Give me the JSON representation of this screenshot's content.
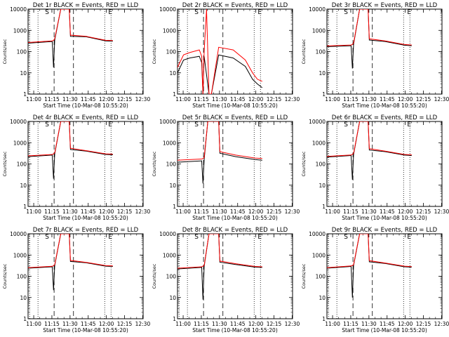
{
  "chart_data": [
    {
      "type": "line",
      "title": "Det 1r BLACK = Events, RED = LLD",
      "xlabel": "Start Time (10-Mar-08 10:55:20)",
      "ylabel": "Counts/sec",
      "x_tick_labels": [
        "11:00",
        "11:15",
        "11:30",
        "11:45",
        "12:00",
        "12:15",
        "12:30"
      ],
      "y_tick_labels": [
        "1",
        "10",
        "100",
        "1000",
        "10000"
      ],
      "y_scale": "log",
      "ylim": [
        1,
        10000
      ],
      "marker_labels": [
        "S",
        "E"
      ],
      "series": [
        {
          "color": "#000000",
          "points": [
            [
              0,
              250
            ],
            [
              20,
              300
            ],
            [
              21,
              18
            ],
            [
              22,
              350
            ],
            [
              27,
              10000
            ],
            [
              34,
              10000
            ],
            [
              35,
              520
            ],
            [
              48,
              500
            ],
            [
              64,
              320
            ],
            [
              70,
              310
            ]
          ]
        },
        {
          "color": "#ff0000",
          "points": [
            [
              0,
              270
            ],
            [
              20,
              320
            ],
            [
              21,
              340
            ],
            [
              22,
              400
            ],
            [
              27,
              10000
            ],
            [
              34,
              10000
            ],
            [
              35,
              600
            ],
            [
              48,
              520
            ],
            [
              64,
              340
            ],
            [
              70,
              330
            ]
          ]
        }
      ]
    },
    {
      "type": "line",
      "title": "Det 2r BLACK = Events, RED = LLD",
      "xlabel": "Start Time (10-Mar-08 10:55:20)",
      "ylabel": "Counts/sec",
      "x_tick_labels": [
        "11:00",
        "11:15",
        "11:30",
        "11:45",
        "12:00",
        "12:15",
        "12:30"
      ],
      "y_tick_labels": [
        "1",
        "10",
        "100",
        "1000",
        "10000"
      ],
      "y_scale": "log",
      "ylim": [
        1,
        10000
      ],
      "marker_labels": [
        "S",
        "E"
      ],
      "series": [
        {
          "color": "#000000",
          "points": [
            [
              0,
              10
            ],
            [
              5,
              40
            ],
            [
              10,
              50
            ],
            [
              18,
              60
            ],
            [
              20,
              30
            ],
            [
              21,
              1
            ],
            [
              22,
              60
            ],
            [
              26,
              1
            ],
            [
              28,
              1
            ],
            [
              34,
              70
            ],
            [
              46,
              50
            ],
            [
              56,
              20
            ],
            [
              62,
              5
            ],
            [
              66,
              3
            ],
            [
              70,
              2
            ]
          ]
        },
        {
          "color": "#ff0000",
          "points": [
            [
              0,
              18
            ],
            [
              5,
              70
            ],
            [
              10,
              90
            ],
            [
              18,
              120
            ],
            [
              20,
              60
            ],
            [
              21,
              1
            ],
            [
              22,
              100
            ],
            [
              24,
              10000
            ],
            [
              26,
              1
            ],
            [
              28,
              1
            ],
            [
              34,
              160
            ],
            [
              46,
              120
            ],
            [
              56,
              40
            ],
            [
              62,
              10
            ],
            [
              66,
              5
            ],
            [
              70,
              4
            ]
          ]
        }
      ]
    },
    {
      "type": "line",
      "title": "Det 3r BLACK = Events, RED = LLD",
      "xlabel": "Start Time (10-Mar-08 10:55:20)",
      "ylabel": "Counts/sec",
      "x_tick_labels": [
        "11:00",
        "11:15",
        "11:30",
        "11:45",
        "12:00",
        "12:15",
        "12:30"
      ],
      "y_tick_labels": [
        "1",
        "10",
        "100",
        "1000",
        "10000"
      ],
      "y_scale": "log",
      "ylim": [
        1,
        10000
      ],
      "marker_labels": [
        "S",
        "E"
      ],
      "series": [
        {
          "color": "#000000",
          "points": [
            [
              0,
              170
            ],
            [
              20,
              190
            ],
            [
              21,
              16
            ],
            [
              22,
              220
            ],
            [
              27,
              10000
            ],
            [
              34,
              10000
            ],
            [
              35,
              350
            ],
            [
              48,
              300
            ],
            [
              64,
              200
            ],
            [
              70,
              190
            ]
          ]
        },
        {
          "color": "#ff0000",
          "points": [
            [
              0,
              185
            ],
            [
              20,
              205
            ],
            [
              21,
              220
            ],
            [
              22,
              250
            ],
            [
              27,
              10000
            ],
            [
              34,
              10000
            ],
            [
              35,
              400
            ],
            [
              48,
              320
            ],
            [
              64,
              215
            ],
            [
              70,
              205
            ]
          ]
        }
      ]
    },
    {
      "type": "line",
      "title": "Det 4r BLACK = Events, RED = LLD",
      "xlabel": "Start Time (10-Mar-08 10:55:20)",
      "ylabel": "Counts/sec",
      "x_tick_labels": [
        "11:00",
        "11:15",
        "11:30",
        "11:45",
        "12:00",
        "12:15",
        "12:30"
      ],
      "y_tick_labels": [
        "1",
        "10",
        "100",
        "1000",
        "10000"
      ],
      "y_scale": "log",
      "ylim": [
        1,
        10000
      ],
      "marker_labels": [
        "S",
        "E"
      ],
      "series": [
        {
          "color": "#000000",
          "points": [
            [
              0,
              220
            ],
            [
              20,
              260
            ],
            [
              21,
              20
            ],
            [
              22,
              300
            ],
            [
              27,
              10000
            ],
            [
              34,
              10000
            ],
            [
              35,
              480
            ],
            [
              48,
              400
            ],
            [
              64,
              280
            ],
            [
              70,
              270
            ]
          ]
        },
        {
          "color": "#ff0000",
          "points": [
            [
              0,
              240
            ],
            [
              20,
              280
            ],
            [
              21,
              300
            ],
            [
              22,
              330
            ],
            [
              27,
              10000
            ],
            [
              34,
              10000
            ],
            [
              35,
              550
            ],
            [
              48,
              420
            ],
            [
              64,
              300
            ],
            [
              70,
              290
            ]
          ]
        }
      ]
    },
    {
      "type": "line",
      "title": "Det 5r BLACK = Events, RED = LLD",
      "xlabel": "Start Time (10-Mar-08 10:55:20)",
      "ylabel": "Counts/sec",
      "x_tick_labels": [
        "11:00",
        "11:15",
        "11:30",
        "11:45",
        "12:00",
        "12:15",
        "12:30"
      ],
      "y_tick_labels": [
        "1",
        "10",
        "100",
        "1000",
        "10000"
      ],
      "y_scale": "log",
      "ylim": [
        1,
        10000
      ],
      "marker_labels": [
        "S",
        "E"
      ],
      "series": [
        {
          "color": "#000000",
          "points": [
            [
              0,
              120
            ],
            [
              20,
              140
            ],
            [
              21,
              12
            ],
            [
              22,
              160
            ],
            [
              25,
              10000
            ],
            [
              34,
              10000
            ],
            [
              35,
              320
            ],
            [
              48,
              220
            ],
            [
              64,
              160
            ],
            [
              70,
              150
            ]
          ]
        },
        {
          "color": "#ff0000",
          "points": [
            [
              0,
              150
            ],
            [
              20,
              170
            ],
            [
              21,
              180
            ],
            [
              22,
              200
            ],
            [
              25,
              10000
            ],
            [
              34,
              10000
            ],
            [
              35,
              380
            ],
            [
              48,
              260
            ],
            [
              64,
              190
            ],
            [
              70,
              180
            ]
          ]
        }
      ]
    },
    {
      "type": "line",
      "title": "Det 6r BLACK = Events, RED = LLD",
      "xlabel": "Start Time (10-Mar-08 10:55:20)",
      "ylabel": "Counts/sec",
      "x_tick_labels": [
        "11:00",
        "11:15",
        "11:30",
        "11:45",
        "12:00",
        "12:15",
        "12:30"
      ],
      "y_tick_labels": [
        "1",
        "10",
        "100",
        "1000",
        "10000"
      ],
      "y_scale": "log",
      "ylim": [
        1,
        10000
      ],
      "marker_labels": [
        "S",
        "E"
      ],
      "series": [
        {
          "color": "#000000",
          "points": [
            [
              0,
              210
            ],
            [
              20,
              250
            ],
            [
              21,
              18
            ],
            [
              22,
              280
            ],
            [
              27,
              10000
            ],
            [
              34,
              10000
            ],
            [
              35,
              450
            ],
            [
              48,
              380
            ],
            [
              64,
              260
            ],
            [
              70,
              250
            ]
          ]
        },
        {
          "color": "#ff0000",
          "points": [
            [
              0,
              225
            ],
            [
              20,
              265
            ],
            [
              21,
              285
            ],
            [
              22,
              310
            ],
            [
              27,
              10000
            ],
            [
              34,
              10000
            ],
            [
              35,
              520
            ],
            [
              48,
              400
            ],
            [
              64,
              280
            ],
            [
              70,
              270
            ]
          ]
        }
      ]
    },
    {
      "type": "line",
      "title": "Det 7r BLACK = Events, RED = LLD",
      "xlabel": "Start Time (10-Mar-08 10:55:20)",
      "ylabel": "Counts/sec",
      "x_tick_labels": [
        "11:00",
        "11:15",
        "11:30",
        "11:45",
        "12:00",
        "12:15",
        "12:30"
      ],
      "y_tick_labels": [
        "1",
        "10",
        "100",
        "1000",
        "10000"
      ],
      "y_scale": "log",
      "ylim": [
        1,
        10000
      ],
      "marker_labels": [
        "S",
        "E"
      ],
      "series": [
        {
          "color": "#000000",
          "points": [
            [
              0,
              240
            ],
            [
              20,
              280
            ],
            [
              21,
              22
            ],
            [
              22,
              320
            ],
            [
              27,
              10000
            ],
            [
              34,
              10000
            ],
            [
              35,
              500
            ],
            [
              48,
              430
            ],
            [
              64,
              300
            ],
            [
              70,
              290
            ]
          ]
        },
        {
          "color": "#ff0000",
          "points": [
            [
              0,
              255
            ],
            [
              20,
              295
            ],
            [
              21,
              315
            ],
            [
              22,
              350
            ],
            [
              27,
              10000
            ],
            [
              34,
              10000
            ],
            [
              35,
              560
            ],
            [
              48,
              450
            ],
            [
              64,
              320
            ],
            [
              70,
              305
            ]
          ]
        }
      ]
    },
    {
      "type": "line",
      "title": "Det 8r BLACK = Events, RED = LLD",
      "xlabel": "Start Time (10-Mar-08 10:55:20)",
      "ylabel": "Counts/sec",
      "x_tick_labels": [
        "11:00",
        "11:15",
        "11:30",
        "11:45",
        "12:00",
        "12:15",
        "12:30"
      ],
      "y_tick_labels": [
        "1",
        "10",
        "100",
        "1000",
        "10000"
      ],
      "y_scale": "log",
      "ylim": [
        1,
        10000
      ],
      "marker_labels": [
        "S",
        "E"
      ],
      "series": [
        {
          "color": "#000000",
          "points": [
            [
              0,
              220
            ],
            [
              20,
              260
            ],
            [
              21,
              8
            ],
            [
              22,
              290
            ],
            [
              26,
              10000
            ],
            [
              34,
              10000
            ],
            [
              35,
              460
            ],
            [
              48,
              360
            ],
            [
              64,
              270
            ],
            [
              70,
              260
            ]
          ]
        },
        {
          "color": "#ff0000",
          "points": [
            [
              0,
              240
            ],
            [
              20,
              280
            ],
            [
              21,
              300
            ],
            [
              22,
              320
            ],
            [
              26,
              10000
            ],
            [
              34,
              10000
            ],
            [
              35,
              520
            ],
            [
              48,
              390
            ],
            [
              64,
              290
            ],
            [
              70,
              280
            ]
          ]
        }
      ]
    },
    {
      "type": "line",
      "title": "Det 9r BLACK = Events, RED = LLD",
      "xlabel": "Start Time (10-Mar-08 10:55:20)",
      "ylabel": "Counts/sec",
      "x_tick_labels": [
        "11:00",
        "11:15",
        "11:30",
        "11:45",
        "12:00",
        "12:15",
        "12:30"
      ],
      "y_tick_labels": [
        "1",
        "10",
        "100",
        "1000",
        "10000"
      ],
      "y_scale": "log",
      "ylim": [
        1,
        10000
      ],
      "marker_labels": [
        "S",
        "E"
      ],
      "series": [
        {
          "color": "#000000",
          "points": [
            [
              0,
              240
            ],
            [
              20,
              290
            ],
            [
              21,
              10
            ],
            [
              22,
              320
            ],
            [
              27,
              10000
            ],
            [
              34,
              10000
            ],
            [
              35,
              480
            ],
            [
              48,
              400
            ],
            [
              64,
              280
            ],
            [
              70,
              270
            ]
          ]
        },
        {
          "color": "#ff0000",
          "points": [
            [
              0,
              255
            ],
            [
              20,
              305
            ],
            [
              21,
              325
            ],
            [
              22,
              350
            ],
            [
              27,
              10000
            ],
            [
              34,
              10000
            ],
            [
              35,
              540
            ],
            [
              48,
              420
            ],
            [
              64,
              300
            ],
            [
              70,
              285
            ]
          ]
        }
      ]
    }
  ]
}
